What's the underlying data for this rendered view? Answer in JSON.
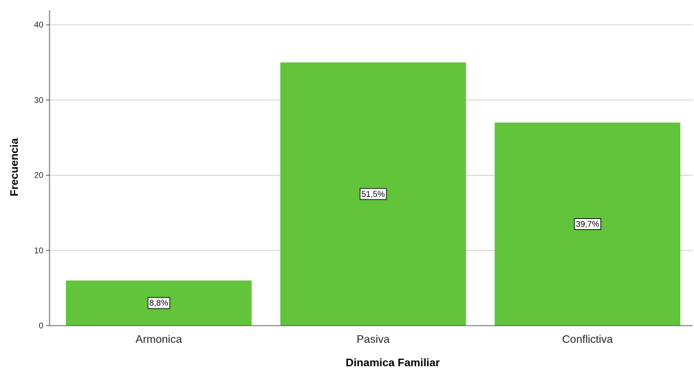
{
  "chart_data": {
    "type": "bar",
    "categories": [
      "Armonica",
      "Pasiva",
      "Conflictiva"
    ],
    "values": [
      6,
      35,
      27
    ],
    "data_labels": [
      "8,8%",
      "51,5%",
      "39,7%"
    ],
    "xlabel": "Dinamica Familiar",
    "ylabel": "Frecuencia",
    "ylim": [
      0,
      40
    ],
    "yticks": [
      0,
      10,
      20,
      30,
      40
    ],
    "grid": true,
    "bar_color": "#61c43b",
    "legend": "none"
  }
}
